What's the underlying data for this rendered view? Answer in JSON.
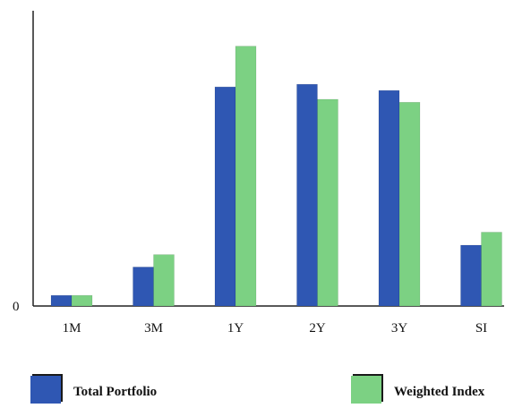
{
  "chart_data": {
    "type": "bar",
    "title": "",
    "xlabel": "",
    "ylabel": "",
    "categories": [
      "1M",
      "3M",
      "1Y",
      "2Y",
      "3Y",
      "SI"
    ],
    "y_zero_label": "0",
    "ylim": [
      0,
      1
    ],
    "grid": false,
    "legend_position": "bottom",
    "series": [
      {
        "name": "Total Portfolio",
        "color": "#2f57b3",
        "values": [
          0.036,
          0.132,
          0.742,
          0.751,
          0.73,
          0.206
        ]
      },
      {
        "name": "Weighted Index",
        "color": "#7cd183",
        "values": [
          0.036,
          0.174,
          0.88,
          0.7,
          0.69,
          0.25
        ]
      }
    ]
  }
}
